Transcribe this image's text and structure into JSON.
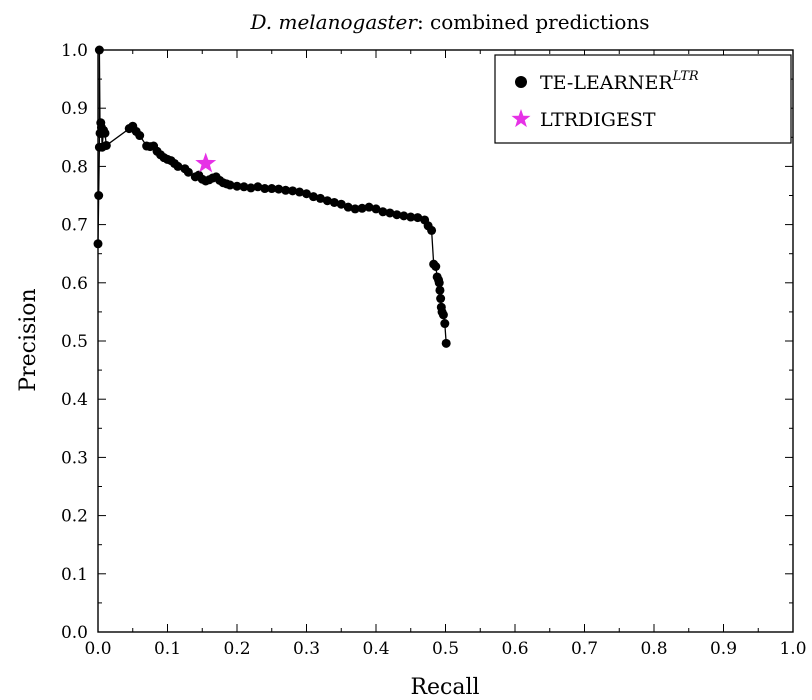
{
  "chart_data": {
    "type": "line",
    "title_italic": "D. melanogaster",
    "title_rest": ": combined predictions",
    "xlabel": "Recall",
    "ylabel": "Precision",
    "xlim": [
      0.0,
      1.0
    ],
    "ylim": [
      0.0,
      1.0
    ],
    "xticks": [
      0.0,
      0.1,
      0.2,
      0.3,
      0.4,
      0.5,
      0.6,
      0.7,
      0.8,
      0.9,
      1.0
    ],
    "yticks": [
      0.0,
      0.1,
      0.2,
      0.3,
      0.4,
      0.5,
      0.6,
      0.7,
      0.8,
      0.9,
      1.0
    ],
    "xtick_labels": [
      "0.0",
      "0.1",
      "0.2",
      "0.3",
      "0.4",
      "0.5",
      "0.6",
      "0.7",
      "0.8",
      "0.9",
      "1.0"
    ],
    "ytick_labels": [
      "0.0",
      "0.1",
      "0.2",
      "0.3",
      "0.4",
      "0.5",
      "0.6",
      "0.7",
      "0.8",
      "0.9",
      "1.0"
    ],
    "grid": false,
    "legend_position": "top-right",
    "series": [
      {
        "name": "TE-LEARNER",
        "name_superscript": "LTR",
        "style": "line-with-markers",
        "marker": "circle",
        "color": "#000000",
        "x": [
          0.0,
          0.001,
          0.002,
          0.002,
          0.003,
          0.004,
          0.005,
          0.006,
          0.008,
          0.01,
          0.012,
          0.045,
          0.05,
          0.055,
          0.06,
          0.07,
          0.075,
          0.08,
          0.085,
          0.09,
          0.095,
          0.1,
          0.105,
          0.11,
          0.115,
          0.125,
          0.13,
          0.14,
          0.145,
          0.15,
          0.155,
          0.16,
          0.165,
          0.17,
          0.175,
          0.18,
          0.185,
          0.19,
          0.2,
          0.21,
          0.22,
          0.23,
          0.24,
          0.25,
          0.26,
          0.27,
          0.28,
          0.29,
          0.3,
          0.31,
          0.32,
          0.33,
          0.34,
          0.35,
          0.36,
          0.37,
          0.38,
          0.39,
          0.4,
          0.41,
          0.42,
          0.43,
          0.44,
          0.45,
          0.46,
          0.47,
          0.475,
          0.48,
          0.483,
          0.486,
          0.488,
          0.49,
          0.491,
          0.492,
          0.493,
          0.494,
          0.495,
          0.497,
          0.499,
          0.501
        ],
        "y": [
          0.667,
          0.75,
          0.833,
          1.0,
          0.857,
          0.875,
          0.867,
          0.833,
          0.862,
          0.857,
          0.836,
          0.865,
          0.869,
          0.86,
          0.853,
          0.835,
          0.834,
          0.835,
          0.826,
          0.82,
          0.815,
          0.812,
          0.81,
          0.805,
          0.8,
          0.796,
          0.79,
          0.782,
          0.785,
          0.778,
          0.775,
          0.777,
          0.78,
          0.782,
          0.776,
          0.772,
          0.77,
          0.768,
          0.766,
          0.765,
          0.763,
          0.765,
          0.762,
          0.762,
          0.761,
          0.759,
          0.758,
          0.756,
          0.753,
          0.748,
          0.745,
          0.741,
          0.738,
          0.735,
          0.73,
          0.727,
          0.728,
          0.73,
          0.727,
          0.722,
          0.72,
          0.717,
          0.715,
          0.713,
          0.712,
          0.708,
          0.698,
          0.69,
          0.632,
          0.628,
          0.61,
          0.605,
          0.6,
          0.587,
          0.573,
          0.558,
          0.55,
          0.545,
          0.53,
          0.496
        ]
      },
      {
        "name": "LTRDIGEST",
        "style": "marker-only",
        "marker": "star",
        "color": "#e632e6",
        "x": [
          0.155
        ],
        "y": [
          0.805
        ]
      }
    ]
  }
}
